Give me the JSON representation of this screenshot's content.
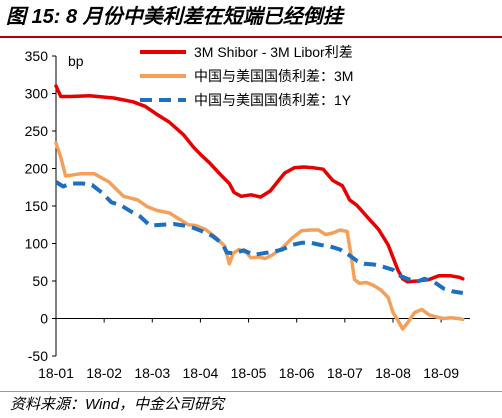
{
  "figure": {
    "title": "图 15: 8 月份中美利差在短端已经倒挂",
    "source": "资料来源：Wind，中金公司研究"
  },
  "chart_data": {
    "type": "line",
    "title": "",
    "xlabel": "",
    "ylabel": "bp",
    "ylim": [
      -50,
      350
    ],
    "yticks": [
      -50,
      0,
      50,
      100,
      150,
      200,
      250,
      300,
      350
    ],
    "xlim": [
      0,
      8.6
    ],
    "xticks": [
      {
        "x": 0,
        "label": "18-01"
      },
      {
        "x": 1,
        "label": "18-02"
      },
      {
        "x": 2,
        "label": "18-03"
      },
      {
        "x": 3,
        "label": "18-04"
      },
      {
        "x": 4,
        "label": "18-05"
      },
      {
        "x": 5,
        "label": "18-06"
      },
      {
        "x": 6,
        "label": "18-07"
      },
      {
        "x": 7,
        "label": "18-08"
      },
      {
        "x": 8,
        "label": "18-09"
      }
    ],
    "legend_position": "top-right",
    "grid": false,
    "series": [
      {
        "name": "3M Shibor - 3M Libor利差",
        "color": "#e60000",
        "dash": "solid",
        "points": [
          [
            0,
            310
          ],
          [
            0.1,
            296
          ],
          [
            0.3,
            296
          ],
          [
            0.7,
            297
          ],
          [
            1.2,
            294
          ],
          [
            1.6,
            289
          ],
          [
            1.85,
            283
          ],
          [
            2.1,
            272
          ],
          [
            2.35,
            262
          ],
          [
            2.65,
            245
          ],
          [
            2.85,
            229
          ],
          [
            3.0,
            219
          ],
          [
            3.2,
            207
          ],
          [
            3.4,
            193
          ],
          [
            3.6,
            180
          ],
          [
            3.7,
            168
          ],
          [
            3.85,
            163
          ],
          [
            4.05,
            165
          ],
          [
            4.25,
            162
          ],
          [
            4.45,
            170
          ],
          [
            4.6,
            182
          ],
          [
            4.75,
            194
          ],
          [
            4.95,
            201
          ],
          [
            5.15,
            202
          ],
          [
            5.35,
            201
          ],
          [
            5.55,
            199
          ],
          [
            5.75,
            184
          ],
          [
            5.95,
            177
          ],
          [
            6.1,
            158
          ],
          [
            6.25,
            151
          ],
          [
            6.5,
            133
          ],
          [
            6.7,
            119
          ],
          [
            6.9,
            98
          ],
          [
            7.1,
            65
          ],
          [
            7.2,
            53
          ],
          [
            7.3,
            49
          ],
          [
            7.5,
            50
          ],
          [
            7.75,
            52
          ],
          [
            7.95,
            57
          ],
          [
            8.2,
            57
          ],
          [
            8.38,
            55
          ],
          [
            8.45,
            53
          ]
        ]
      },
      {
        "name": "中国与美国国债利差：3M",
        "color": "#f5a05a",
        "dash": "solid",
        "points": [
          [
            0,
            234
          ],
          [
            0.1,
            215
          ],
          [
            0.2,
            190
          ],
          [
            0.5,
            193
          ],
          [
            0.8,
            193
          ],
          [
            1.1,
            182
          ],
          [
            1.4,
            163
          ],
          [
            1.7,
            158
          ],
          [
            1.9,
            149
          ],
          [
            2.1,
            144
          ],
          [
            2.35,
            141
          ],
          [
            2.55,
            133
          ],
          [
            2.75,
            125
          ],
          [
            2.9,
            124
          ],
          [
            3.1,
            119
          ],
          [
            3.3,
            109
          ],
          [
            3.5,
            97
          ],
          [
            3.6,
            73
          ],
          [
            3.68,
            87
          ],
          [
            3.8,
            92
          ],
          [
            3.95,
            88
          ],
          [
            4.05,
            81
          ],
          [
            4.2,
            82
          ],
          [
            4.35,
            80
          ],
          [
            4.5,
            85
          ],
          [
            4.7,
            94
          ],
          [
            4.9,
            107
          ],
          [
            5.1,
            117
          ],
          [
            5.3,
            118
          ],
          [
            5.45,
            118
          ],
          [
            5.6,
            112
          ],
          [
            5.75,
            114
          ],
          [
            5.9,
            118
          ],
          [
            6.05,
            116
          ],
          [
            6.12,
            88
          ],
          [
            6.2,
            52
          ],
          [
            6.3,
            47
          ],
          [
            6.45,
            48
          ],
          [
            6.6,
            44
          ],
          [
            6.75,
            38
          ],
          [
            6.9,
            28
          ],
          [
            7.0,
            8
          ],
          [
            7.1,
            -2
          ],
          [
            7.2,
            -14
          ],
          [
            7.3,
            -6
          ],
          [
            7.45,
            8
          ],
          [
            7.6,
            12
          ],
          [
            7.75,
            5
          ],
          [
            7.9,
            2
          ],
          [
            8.05,
            0
          ],
          [
            8.2,
            1
          ],
          [
            8.35,
            0
          ],
          [
            8.45,
            -1
          ]
        ]
      },
      {
        "name": "中国与美国国债利差：1Y",
        "color": "#1f6fc0",
        "dash": "dashed",
        "points": [
          [
            0,
            182
          ],
          [
            0.15,
            176
          ],
          [
            0.3,
            180
          ],
          [
            0.55,
            180
          ],
          [
            0.75,
            178
          ],
          [
            0.95,
            168
          ],
          [
            1.15,
            155
          ],
          [
            1.35,
            151
          ],
          [
            1.55,
            143
          ],
          [
            1.75,
            136
          ],
          [
            1.95,
            124
          ],
          [
            2.2,
            125
          ],
          [
            2.45,
            126
          ],
          [
            2.65,
            124
          ],
          [
            2.85,
            121
          ],
          [
            3.05,
            116
          ],
          [
            3.25,
            110
          ],
          [
            3.45,
            100
          ],
          [
            3.55,
            88
          ],
          [
            3.7,
            87
          ],
          [
            3.9,
            91
          ],
          [
            4.1,
            85
          ],
          [
            4.3,
            87
          ],
          [
            4.5,
            89
          ],
          [
            4.7,
            92
          ],
          [
            4.9,
            98
          ],
          [
            5.1,
            101
          ],
          [
            5.3,
            101
          ],
          [
            5.5,
            98
          ],
          [
            5.7,
            96
          ],
          [
            5.9,
            92
          ],
          [
            6.1,
            84
          ],
          [
            6.25,
            77
          ],
          [
            6.4,
            73
          ],
          [
            6.6,
            72
          ],
          [
            6.8,
            69
          ],
          [
            7.0,
            65
          ],
          [
            7.15,
            57
          ],
          [
            7.3,
            53
          ],
          [
            7.5,
            49
          ],
          [
            7.65,
            53
          ],
          [
            7.85,
            49
          ],
          [
            8.05,
            40
          ],
          [
            8.25,
            36
          ],
          [
            8.45,
            34
          ]
        ]
      }
    ]
  }
}
